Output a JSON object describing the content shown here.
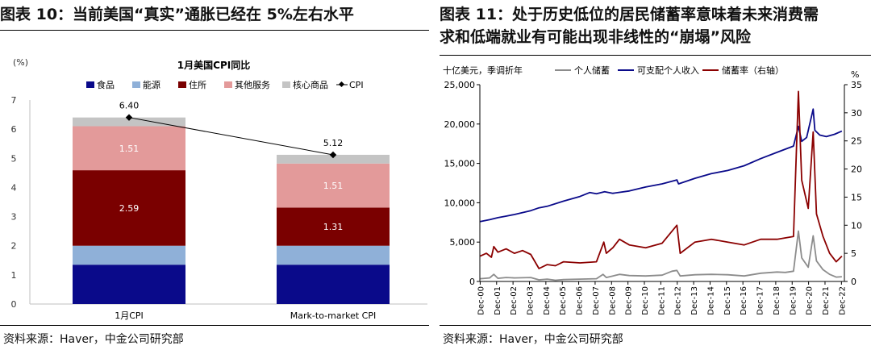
{
  "left": {
    "figure_title": "图表 10：当前美国“真实”通胀已经在 5%左右水平",
    "source": "资料来源：Haver，中金公司研究部"
  },
  "right": {
    "figure_title_line1": "图表 11：处于历史低位的居民储蓄率意味着未来消费需",
    "figure_title_line2": "求和低端就业有可能出现非线性的“崩塌”风险",
    "source": "资料来源：Haver，中金公司研究部"
  },
  "colors": {
    "food": "#0a0a8a",
    "energy": "#8fb0d8",
    "housing": "#7a0000",
    "other_services": "#e39a9a",
    "core_goods": "#c4c4c4",
    "cpi": "#000000",
    "personal_saving": "#8c8c8c",
    "disposable_income": "#0a0a8a",
    "saving_rate": "#8b0000"
  },
  "chart_data": [
    {
      "type": "bar",
      "stacked": true,
      "title": "1月美国CPI同比",
      "ylabel": "(%)",
      "ylim": [
        0,
        7
      ],
      "yticks": [
        "0",
        "1",
        "2",
        "3",
        "4",
        "5",
        "6",
        "7"
      ],
      "categories": [
        "1月CPI",
        "Mark-to-market CPI"
      ],
      "series": [
        {
          "name": "食品",
          "values": [
            1.35,
            1.35
          ]
        },
        {
          "name": "能源",
          "values": [
            0.65,
            0.65
          ]
        },
        {
          "name": "住所",
          "values": [
            2.59,
            1.31
          ]
        },
        {
          "name": "其他服务",
          "values": [
            1.51,
            1.51
          ]
        },
        {
          "name": "核心商品",
          "values": [
            0.3,
            0.3
          ]
        }
      ],
      "segment_labels": [
        [
          "",
          "",
          "2.59",
          "1.51",
          ""
        ],
        [
          "",
          "",
          "1.31",
          "1.51",
          ""
        ]
      ],
      "line": {
        "name": "CPI",
        "values": [
          6.4,
          5.12
        ],
        "labels": [
          "6.40",
          "5.12"
        ]
      },
      "legend": "top"
    },
    {
      "type": "line",
      "unit_left": "十亿美元，季调折年",
      "unit_right": "%",
      "ylim_left": [
        0,
        25000
      ],
      "yticks_left": [
        "0",
        "5,000",
        "10,000",
        "15,000",
        "20,000",
        "25,000"
      ],
      "ylim_right": [
        0,
        35
      ],
      "yticks_right": [
        "0",
        "5",
        "10",
        "15",
        "20",
        "25",
        "30",
        "35"
      ],
      "xticks": [
        "Dec-00",
        "Dec-01",
        "Dec-02",
        "Dec-03",
        "Dec-04",
        "Dec-05",
        "Dec-06",
        "Dec-07",
        "Dec-08",
        "Dec-09",
        "Dec-10",
        "Dec-11",
        "Dec-12",
        "Dec-13",
        "Dec-14",
        "Dec-15",
        "Dec-16",
        "Dec-17",
        "Dec-18",
        "Dec-19",
        "Dec-20",
        "Dec-21",
        "Dec-22"
      ],
      "xlim": [
        2000.9,
        2023.1
      ],
      "legend": "top",
      "series": [
        {
          "name": "个人储蓄",
          "axis": "left",
          "points": [
            [
              2000.92,
              350
            ],
            [
              2001.5,
              450
            ],
            [
              2001.75,
              900
            ],
            [
              2002.0,
              400
            ],
            [
              2002.5,
              500
            ],
            [
              2003.0,
              450
            ],
            [
              2004.0,
              500
            ],
            [
              2004.5,
              200
            ],
            [
              2005.0,
              300
            ],
            [
              2005.5,
              150
            ],
            [
              2006.0,
              250
            ],
            [
              2007.0,
              300
            ],
            [
              2008.0,
              350
            ],
            [
              2008.4,
              900
            ],
            [
              2008.6,
              500
            ],
            [
              2009.0,
              700
            ],
            [
              2009.4,
              900
            ],
            [
              2010.0,
              750
            ],
            [
              2011.0,
              700
            ],
            [
              2012.0,
              800
            ],
            [
              2012.6,
              1300
            ],
            [
              2012.9,
              1400
            ],
            [
              2013.1,
              700
            ],
            [
              2014.0,
              850
            ],
            [
              2015.0,
              900
            ],
            [
              2016.0,
              850
            ],
            [
              2017.0,
              700
            ],
            [
              2018.0,
              1050
            ],
            [
              2019.0,
              1200
            ],
            [
              2019.5,
              1150
            ],
            [
              2020.0,
              1300
            ],
            [
              2020.3,
              6400
            ],
            [
              2020.5,
              3000
            ],
            [
              2020.9,
              1800
            ],
            [
              2021.2,
              5800
            ],
            [
              2021.4,
              2600
            ],
            [
              2021.8,
              1500
            ],
            [
              2022.2,
              900
            ],
            [
              2022.6,
              550
            ],
            [
              2022.95,
              600
            ]
          ]
        },
        {
          "name": "可支配个人收入",
          "axis": "left",
          "points": [
            [
              2000.92,
              7600
            ],
            [
              2001.5,
              7850
            ],
            [
              2002.0,
              8100
            ],
            [
              2002.5,
              8300
            ],
            [
              2003.0,
              8500
            ],
            [
              2004.0,
              9000
            ],
            [
              2004.5,
              9350
            ],
            [
              2005.0,
              9550
            ],
            [
              2006.0,
              10200
            ],
            [
              2007.0,
              10800
            ],
            [
              2007.6,
              11300
            ],
            [
              2008.0,
              11150
            ],
            [
              2008.5,
              11400
            ],
            [
              2009.0,
              11200
            ],
            [
              2010.0,
              11500
            ],
            [
              2011.0,
              12000
            ],
            [
              2012.0,
              12400
            ],
            [
              2012.9,
              12900
            ],
            [
              2013.0,
              12400
            ],
            [
              2014.0,
              13100
            ],
            [
              2015.0,
              13700
            ],
            [
              2016.0,
              14100
            ],
            [
              2017.0,
              14700
            ],
            [
              2018.0,
              15600
            ],
            [
              2019.0,
              16400
            ],
            [
              2020.0,
              17200
            ],
            [
              2020.3,
              19700
            ],
            [
              2020.5,
              17800
            ],
            [
              2020.8,
              18300
            ],
            [
              2021.2,
              21900
            ],
            [
              2021.3,
              19200
            ],
            [
              2021.6,
              18600
            ],
            [
              2022.0,
              18400
            ],
            [
              2022.5,
              18700
            ],
            [
              2022.95,
              19100
            ]
          ]
        },
        {
          "name": "储蓄率（右轴）",
          "axis": "right",
          "points": [
            [
              2000.92,
              4.5
            ],
            [
              2001.3,
              5.0
            ],
            [
              2001.6,
              4.3
            ],
            [
              2001.75,
              6.2
            ],
            [
              2002.0,
              5.2
            ],
            [
              2002.5,
              5.8
            ],
            [
              2003.0,
              5.0
            ],
            [
              2003.5,
              5.5
            ],
            [
              2004.0,
              4.8
            ],
            [
              2004.5,
              2.3
            ],
            [
              2005.0,
              3.0
            ],
            [
              2005.5,
              2.8
            ],
            [
              2006.0,
              3.5
            ],
            [
              2007.0,
              3.3
            ],
            [
              2008.0,
              3.5
            ],
            [
              2008.45,
              7.0
            ],
            [
              2008.6,
              5.0
            ],
            [
              2009.0,
              6.0
            ],
            [
              2009.4,
              7.5
            ],
            [
              2010.0,
              6.5
            ],
            [
              2011.0,
              6.0
            ],
            [
              2012.0,
              6.8
            ],
            [
              2012.9,
              10.0
            ],
            [
              2013.1,
              5.0
            ],
            [
              2014.0,
              7.0
            ],
            [
              2015.0,
              7.5
            ],
            [
              2016.0,
              7.0
            ],
            [
              2017.0,
              6.5
            ],
            [
              2018.0,
              7.5
            ],
            [
              2019.0,
              7.5
            ],
            [
              2020.0,
              8.0
            ],
            [
              2020.3,
              33.8
            ],
            [
              2020.5,
              18.0
            ],
            [
              2020.9,
              13.0
            ],
            [
              2021.2,
              26.6
            ],
            [
              2021.4,
              12.0
            ],
            [
              2021.8,
              8.0
            ],
            [
              2022.2,
              5.0
            ],
            [
              2022.6,
              3.5
            ],
            [
              2022.95,
              4.5
            ]
          ]
        }
      ]
    }
  ]
}
